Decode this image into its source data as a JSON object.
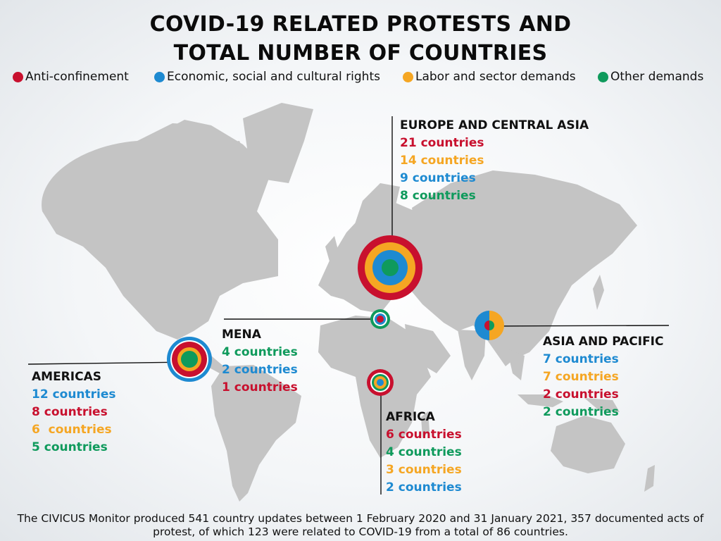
{
  "title": {
    "line1": "COVID-19 RELATED PROTESTS AND",
    "line2": "TOTAL NUMBER OF COUNTRIES"
  },
  "legend": [
    {
      "label": "Anti-confinement",
      "color": "#c8102e"
    },
    {
      "label": "Economic, social and cultural rights",
      "color": "#1e8ad1"
    },
    {
      "label": "Labor and sector demands",
      "color": "#f5a623"
    },
    {
      "label": "Other demands",
      "color": "#0f9a5c"
    }
  ],
  "regions": {
    "europe": {
      "name": "EUROPE AND CENTRAL ASIA",
      "lines": [
        "21 countries",
        "14 countries",
        "9 countries",
        "8 countries"
      ],
      "categories": [
        "anti-confinement",
        "labor",
        "economic",
        "other"
      ]
    },
    "mena": {
      "name": "MENA",
      "lines": [
        "4 countries",
        "2 countries",
        "1 countries"
      ],
      "categories": [
        "other",
        "economic",
        "anti-confinement"
      ]
    },
    "americas": {
      "name": "AMERICAS",
      "lines": [
        "12 countries",
        "8 countries",
        "6  countries",
        "5 countries"
      ],
      "categories": [
        "economic",
        "anti-confinement",
        "labor",
        "other"
      ]
    },
    "africa": {
      "name": "AFRICA",
      "lines": [
        "6 countries",
        "4 countries",
        "3 countries",
        "2 countries"
      ],
      "categories": [
        "anti-confinement",
        "other",
        "labor",
        "economic"
      ]
    },
    "asia": {
      "name": "ASIA AND PACIFIC",
      "lines": [
        "7 countries",
        "7 countries",
        "2 countries",
        "2 countries"
      ],
      "categories": [
        "economic",
        "labor",
        "anti-confinement",
        "other"
      ]
    }
  },
  "footer": {
    "line1": "The CIVICUS Monitor produced 541 country updates between 1 February 2020 and 31 January 2021, 357 documented acts of",
    "line2": "protest, of which 123 were related to COVID-19 from a total of 86 countries."
  }
}
